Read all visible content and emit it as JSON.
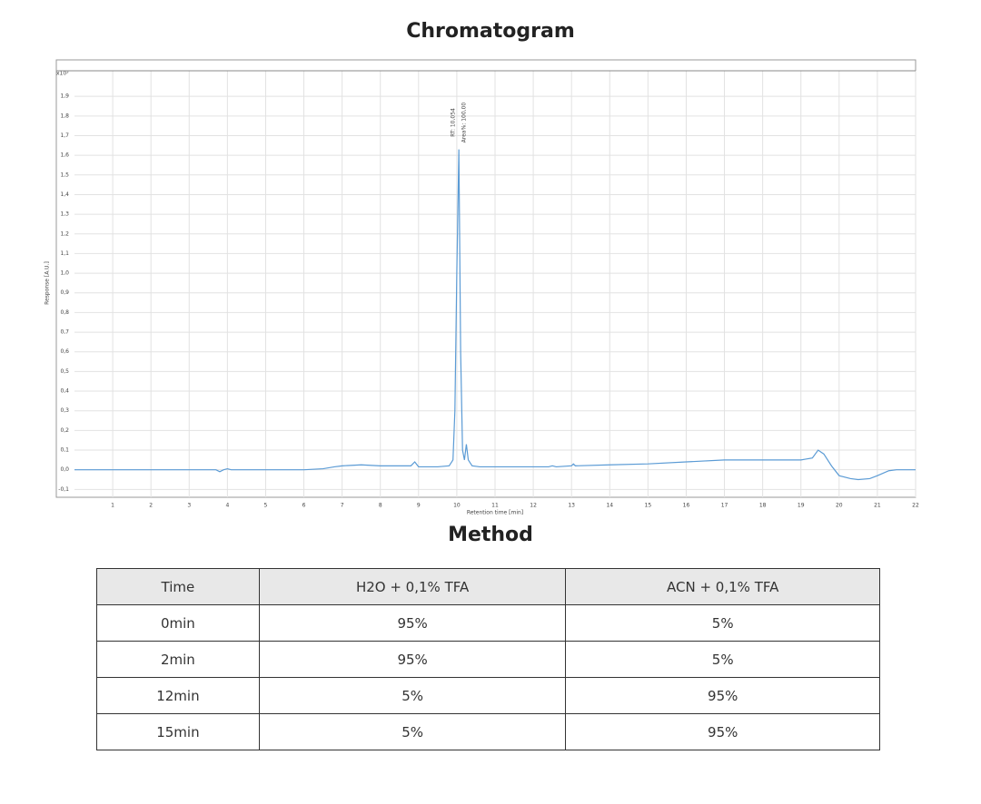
{
  "chart_data": {
    "type": "line",
    "title": "Chromatogram",
    "y_label": "Response [A.U.]",
    "x_label": "Retention time [min]",
    "y_multiplier": "x10³",
    "annotations": [
      "RT: 10,054",
      "Area%: 100,00"
    ],
    "x": [
      0,
      1,
      2,
      3,
      3.7,
      3.8,
      3.9,
      4,
      4.1,
      5,
      6,
      6.5,
      6.8,
      7,
      7.5,
      8,
      8.5,
      8.8,
      8.9,
      9.0,
      9.5,
      9.8,
      9.9,
      9.95,
      10.0,
      10.054,
      10.1,
      10.15,
      10.2,
      10.25,
      10.3,
      10.4,
      10.6,
      11,
      12,
      12.4,
      12.5,
      12.6,
      13,
      13.05,
      13.1,
      14,
      15,
      16,
      17,
      18,
      19,
      19.3,
      19.45,
      19.6,
      19.8,
      20,
      20.3,
      20.5,
      20.8,
      21,
      21.3,
      21.5,
      22
    ],
    "values": [
      0,
      0,
      0,
      0,
      0,
      -0.01,
      0,
      0.005,
      0,
      0,
      0,
      0.005,
      0.015,
      0.02,
      0.025,
      0.02,
      0.02,
      0.02,
      0.04,
      0.015,
      0.015,
      0.02,
      0.05,
      0.3,
      1.0,
      1.63,
      0.6,
      0.1,
      0.05,
      0.13,
      0.05,
      0.02,
      0.015,
      0.015,
      0.015,
      0.015,
      0.02,
      0.015,
      0.02,
      0.03,
      0.02,
      0.025,
      0.03,
      0.04,
      0.05,
      0.05,
      0.05,
      0.06,
      0.1,
      0.08,
      0.02,
      -0.03,
      -0.045,
      -0.05,
      -0.045,
      -0.03,
      -0.005,
      0,
      0
    ],
    "color": "#5b9bd5",
    "grid": true,
    "xlim": [
      0,
      22
    ],
    "xticks": [
      1,
      2,
      3,
      4,
      5,
      6,
      7,
      8,
      9,
      10,
      11,
      12,
      13,
      14,
      15,
      16,
      17,
      18,
      19,
      20,
      21,
      22
    ],
    "ylim": [
      -0.14,
      2.03
    ],
    "yticks": [
      {
        "value": -0.1,
        "label": "-0,1"
      },
      {
        "value": 0,
        "label": "0,0"
      },
      {
        "value": 0.1,
        "label": "0,1"
      },
      {
        "value": 0.2,
        "label": "0,2"
      },
      {
        "value": 0.3,
        "label": "0,3"
      },
      {
        "value": 0.4,
        "label": "0,4"
      },
      {
        "value": 0.5,
        "label": "0,5"
      },
      {
        "value": 0.6,
        "label": "0,6"
      },
      {
        "value": 0.7,
        "label": "0,7"
      },
      {
        "value": 0.8,
        "label": "0,8"
      },
      {
        "value": 0.9,
        "label": "0,9"
      },
      {
        "value": 1,
        "label": "1,0"
      },
      {
        "value": 1.1,
        "label": "1,1"
      },
      {
        "value": 1.2,
        "label": "1,2"
      },
      {
        "value": 1.3,
        "label": "1,3"
      },
      {
        "value": 1.4,
        "label": "1,4"
      },
      {
        "value": 1.5,
        "label": "1,5"
      },
      {
        "value": 1.6,
        "label": "1,6"
      },
      {
        "value": 1.7,
        "label": "1,7"
      },
      {
        "value": 1.8,
        "label": "1,8"
      },
      {
        "value": 1.9,
        "label": "1,9"
      }
    ]
  },
  "method": {
    "title": "Method",
    "header": [
      "Time",
      "H2O + 0,1% TFA",
      "ACN + 0,1% TFA"
    ],
    "rows": [
      [
        "0min",
        "95%",
        "5%"
      ],
      [
        "2min",
        "95%",
        "5%"
      ],
      [
        "12min",
        "5%",
        "95%"
      ],
      [
        "15min",
        "5%",
        "95%"
      ]
    ]
  }
}
